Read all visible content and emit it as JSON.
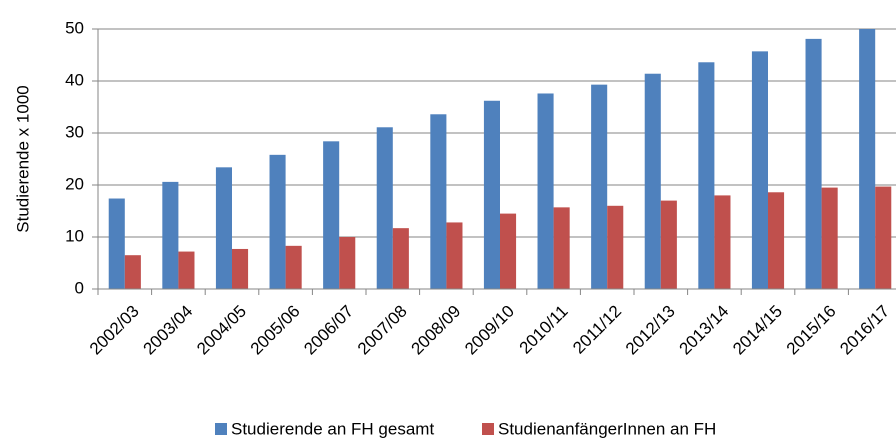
{
  "chart_data": {
    "type": "bar",
    "y_label": "Studierende x 1000",
    "categories": [
      "2002/03",
      "2003/04",
      "2004/05",
      "2005/06",
      "2006/07",
      "2007/08",
      "2008/09",
      "2009/10",
      "2010/11",
      "2011/12",
      "2012/13",
      "2013/14",
      "2014/15",
      "2015/16",
      "2016/17"
    ],
    "series": [
      {
        "name": "Studierende an FH gesamt",
        "color": "#4f81bd",
        "values": [
          17.4,
          20.6,
          23.4,
          25.8,
          28.4,
          31.1,
          33.6,
          36.2,
          37.6,
          39.3,
          41.4,
          43.6,
          45.7,
          48.1,
          50
        ]
      },
      {
        "name": "StudienanfängerInnen an FH",
        "color": "#c0504d",
        "values": [
          6.5,
          7.2,
          7.7,
          8.3,
          10.0,
          11.7,
          12.8,
          14.5,
          15.7,
          16.0,
          17.0,
          18.0,
          18.6,
          19.5,
          19.7
        ]
      }
    ],
    "ylim": [
      0,
      50
    ],
    "yticks": [
      0,
      10,
      20,
      30,
      40,
      50
    ],
    "grid": true,
    "legend": "bottom"
  }
}
